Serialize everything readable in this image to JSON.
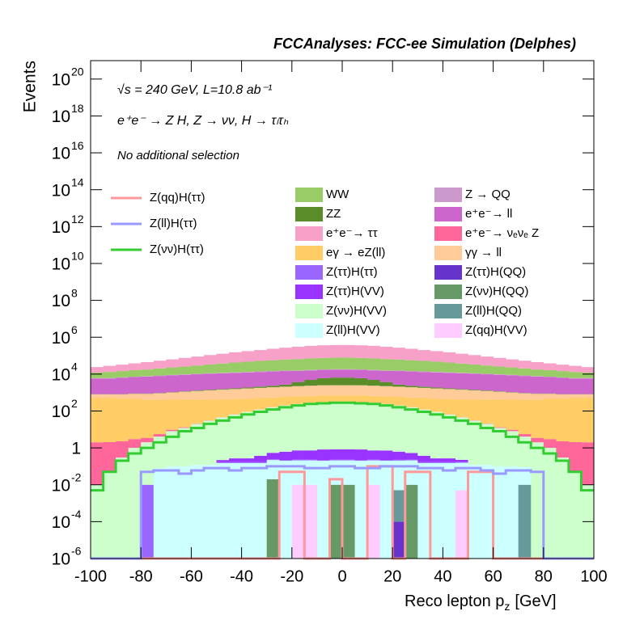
{
  "chart_data": {
    "type": "histogram",
    "title": "FCCAnalyses: FCC-ee Simulation (Delphes)",
    "annotations": [
      "√s = 240 GeV, L=10.8 ab⁻¹",
      "e⁺e⁻ → Z H, Z → νν, H → τₗτₕ",
      "No additional selection"
    ],
    "y_label": "Events",
    "x_label": {
      "main": "Reco lepton p",
      "sub": "z",
      "unit": "[GeV]"
    },
    "log_y": true,
    "stacked": true,
    "bins": [
      -100,
      -95,
      -90,
      -85,
      -80,
      -75,
      -70,
      -65,
      -60,
      -55,
      -50,
      -45,
      -40,
      -35,
      -30,
      -25,
      -20,
      -15,
      -10,
      -5,
      0,
      5,
      10,
      15,
      20,
      25,
      30,
      35,
      40,
      45,
      50,
      55,
      60,
      65,
      70,
      75,
      80,
      85,
      90,
      95,
      100
    ],
    "xlim": [
      -100,
      100
    ],
    "xticks": [
      -100,
      -80,
      -60,
      -40,
      -20,
      0,
      20,
      40,
      60,
      80,
      100
    ],
    "ylim": [
      1e-06,
      1e+21
    ],
    "yticks": [
      {
        "value": 1e-06,
        "label": "10",
        "exponent": "-6"
      },
      {
        "value": 0.0001,
        "label": "10",
        "exponent": "-4"
      },
      {
        "value": 0.01,
        "label": "10",
        "exponent": "-2"
      },
      1,
      {
        "value": 100.0,
        "label": "10",
        "exponent": "2"
      },
      {
        "value": 10000.0,
        "label": "10",
        "exponent": "4"
      },
      {
        "value": 1000000.0,
        "label": "10",
        "exponent": "6"
      },
      {
        "value": 100000000.0,
        "label": "10",
        "exponent": "8"
      },
      {
        "value": 10000000000.0,
        "label": "10",
        "exponent": "10"
      },
      {
        "value": 1000000000000.0,
        "label": "10",
        "exponent": "12"
      },
      {
        "value": 100000000000000.0,
        "label": "10",
        "exponent": "14"
      },
      {
        "value": 1e+16,
        "label": "10",
        "exponent": "16"
      },
      {
        "value": 1e+18,
        "label": "10",
        "exponent": "18"
      },
      {
        "value": 1e+20,
        "label": "10",
        "exponent": "20"
      }
    ],
    "series": [
      {
        "name": "Z(ττ)H(QQ)",
        "color": "#6633cc",
        "values": [
          0,
          0,
          0,
          0,
          0,
          0,
          0,
          0,
          0,
          0,
          0,
          0,
          0,
          0,
          0,
          0,
          0,
          0,
          0,
          0,
          0,
          0,
          0,
          0,
          0.0001,
          0,
          0,
          0,
          0,
          0,
          0,
          0,
          0,
          0,
          0,
          0,
          0,
          0,
          0,
          0
        ]
      },
      {
        "name": "Z(ll)H(QQ)",
        "color": "#669999",
        "values": [
          0,
          0,
          0,
          0,
          0,
          0,
          0,
          0,
          0,
          0,
          0,
          0,
          0,
          0,
          0,
          0,
          0,
          0,
          0,
          0,
          0,
          0,
          0,
          0,
          0.005,
          0,
          0,
          0,
          0,
          0,
          0,
          0,
          0,
          0,
          0.01,
          0,
          0,
          0,
          0,
          0
        ]
      },
      {
        "name": "Z(νν)H(QQ)",
        "color": "#669966",
        "values": [
          0,
          0,
          0,
          0,
          0,
          0,
          0,
          0,
          0,
          0,
          0,
          0,
          0,
          0,
          0.02,
          0,
          0,
          0,
          0,
          0.01,
          0.01,
          0,
          0,
          0,
          0,
          0.01,
          0,
          0,
          0,
          0,
          0,
          0,
          0,
          0,
          0,
          0,
          0,
          0,
          0,
          0
        ]
      },
      {
        "name": "Z(qq)H(VV)",
        "color": "#ffccff",
        "values": [
          0,
          0,
          0,
          0,
          0,
          0,
          0,
          0,
          0,
          0,
          0,
          0,
          0,
          0,
          0,
          0,
          0.01,
          0.01,
          0,
          0,
          0,
          0,
          0.01,
          0,
          0,
          0,
          0,
          0,
          0,
          0.005,
          0,
          0,
          0,
          0,
          0,
          0,
          0,
          0,
          0,
          0
        ]
      },
      {
        "name": "Z(ll)H(VV)",
        "color": "#ccffff",
        "values": [
          0,
          0,
          0,
          0,
          0,
          0.08,
          0.1,
          0.1,
          0.12,
          0.12,
          0.15,
          0.15,
          0.15,
          0.15,
          0.2,
          0.2,
          0.2,
          0.2,
          0.2,
          0.2,
          0.2,
          0.2,
          0.2,
          0.2,
          0.2,
          0.2,
          0.15,
          0.15,
          0.15,
          0.15,
          0.12,
          0.12,
          0.1,
          0.1,
          0.08,
          0,
          0,
          0,
          0,
          0
        ]
      },
      {
        "name": "Z(ττ)H(ττ)",
        "color": "#9966ff",
        "values": [
          0,
          0,
          0,
          0,
          0.01,
          0,
          0,
          0,
          0,
          0,
          0.02,
          0.02,
          0.02,
          0.02,
          0.02,
          0.02,
          0.02,
          0.02,
          0.02,
          0.02,
          0.02,
          0.02,
          0.02,
          0.02,
          0.02,
          0.02,
          0.02,
          0.02,
          0.02,
          0.02,
          0,
          0,
          0,
          0,
          0,
          0,
          0,
          0,
          0,
          0
        ]
      },
      {
        "name": "Z(ττ)H(VV)",
        "color": "#9933ff",
        "values": [
          0,
          0,
          0,
          0,
          0,
          0,
          0,
          0,
          0,
          0,
          0.05,
          0.1,
          0.1,
          0.2,
          0.3,
          0.4,
          0.5,
          0.5,
          0.6,
          0.6,
          0.6,
          0.6,
          0.5,
          0.5,
          0.4,
          0.3,
          0.2,
          0.1,
          0.1,
          0.05,
          0,
          0,
          0,
          0,
          0,
          0,
          0,
          0,
          0,
          0
        ]
      },
      {
        "name": "Z(νν)H(VV)",
        "color": "#ccffcc",
        "values": [
          0.01,
          0.05,
          0.3,
          1,
          2,
          4,
          8,
          12,
          20,
          30,
          45,
          65,
          90,
          120,
          160,
          200,
          240,
          280,
          300,
          320,
          320,
          300,
          280,
          240,
          200,
          160,
          120,
          90,
          65,
          45,
          30,
          20,
          12,
          8,
          4,
          2,
          1,
          0.3,
          0.05,
          0.01
        ]
      },
      {
        "name": "e⁺e⁻→ νₑνₑ Z",
        "color": "#ff6699",
        "values": [
          2,
          2,
          2,
          2,
          1.5,
          1.5,
          1.5,
          1,
          1,
          1,
          1,
          1,
          1,
          1,
          1,
          1,
          1,
          1,
          1,
          1,
          1,
          1,
          1,
          1,
          1,
          1,
          1,
          1,
          1,
          1,
          1,
          1,
          1,
          1.5,
          1.5,
          1.5,
          2,
          2,
          2,
          2
        ]
      },
      {
        "name": "eγ → eZ(ll)",
        "color": "#ffcc66",
        "values": [
          500,
          500,
          450,
          450,
          400,
          400,
          400,
          400,
          400,
          380,
          380,
          380,
          380,
          380,
          380,
          380,
          380,
          380,
          380,
          380,
          380,
          380,
          380,
          380,
          380,
          380,
          380,
          380,
          380,
          380,
          380,
          400,
          400,
          400,
          400,
          400,
          450,
          450,
          500,
          500
        ]
      },
      {
        "name": "γγ → ll",
        "color": "#ffcc99",
        "values": [
          300,
          300,
          350,
          400,
          450,
          500,
          600,
          700,
          800,
          900,
          1000,
          1100,
          1200,
          1300,
          1400,
          1500,
          1600,
          1700,
          1800,
          1800,
          1800,
          1800,
          1700,
          1600,
          1500,
          1400,
          1300,
          1200,
          1100,
          1000,
          900,
          800,
          700,
          600,
          500,
          450,
          400,
          350,
          300,
          300
        ]
      },
      {
        "name": "ZZ",
        "color": "#5b8c2a",
        "values": [
          20,
          20,
          20,
          30,
          30,
          40,
          50,
          60,
          80,
          100,
          120,
          150,
          200,
          300,
          400,
          600,
          1500,
          2500,
          3500,
          4000,
          4000,
          3500,
          2500,
          1500,
          600,
          400,
          300,
          200,
          150,
          120,
          100,
          80,
          60,
          50,
          40,
          30,
          30,
          20,
          20,
          20
        ]
      },
      {
        "name": "e⁺e⁻→ ll",
        "color": "#cc66cc",
        "values": [
          5000,
          5000,
          5500,
          6000,
          6500,
          7000,
          7500,
          8000,
          8500,
          9000,
          9500,
          10000,
          10500,
          11000,
          11500,
          12000,
          11000,
          11000,
          11000,
          11000,
          11000,
          11000,
          11000,
          11000,
          12000,
          11500,
          11000,
          10500,
          10000,
          9500,
          9000,
          8500,
          8000,
          7500,
          7000,
          6500,
          6000,
          5500,
          5000,
          5000
        ]
      },
      {
        "name": "Z → QQ",
        "color": "#cc99cc",
        "values": [
          300,
          300,
          300,
          400,
          400,
          500,
          500,
          600,
          600,
          700,
          700,
          800,
          800,
          900,
          900,
          1000,
          1000,
          1000,
          1000,
          1000,
          1000,
          1000,
          1000,
          1000,
          1000,
          900,
          900,
          800,
          800,
          700,
          700,
          600,
          600,
          500,
          500,
          400,
          400,
          300,
          300,
          300
        ]
      },
      {
        "name": "WW",
        "color": "#99cc66",
        "values": [
          6000,
          7000,
          8000,
          9000,
          10000,
          12000,
          14000,
          16000,
          19000,
          22000,
          26000,
          30000,
          34000,
          38000,
          42000,
          46000,
          50000,
          54000,
          57000,
          60000,
          60000,
          57000,
          54000,
          50000,
          46000,
          42000,
          38000,
          34000,
          30000,
          26000,
          22000,
          19000,
          16000,
          14000,
          12000,
          10000,
          9000,
          8000,
          7000,
          6000
        ]
      },
      {
        "name": "e⁺e⁻→ ττ",
        "color": "#f7a1c9",
        "values": [
          12000,
          15000,
          18000,
          22000,
          27000,
          33000,
          40000,
          50000,
          60000,
          75000,
          90000,
          110000,
          130000,
          150000,
          180000,
          210000,
          240000,
          270000,
          290000,
          300000,
          300000,
          290000,
          270000,
          240000,
          210000,
          180000,
          150000,
          130000,
          110000,
          90000,
          75000,
          60000,
          50000,
          40000,
          33000,
          27000,
          22000,
          18000,
          15000,
          12000
        ]
      }
    ],
    "overlay_series": [
      {
        "name": "Z(qq)H(ττ)",
        "color": "#ff9999",
        "values": [
          0,
          0,
          0,
          0,
          0,
          0,
          0,
          0,
          0,
          0,
          0,
          0,
          0,
          0,
          0,
          0.05,
          0.05,
          0,
          0,
          0.02,
          0,
          0,
          0.1,
          0.1,
          0,
          0.05,
          0.05,
          0,
          0,
          0,
          0.05,
          0.05,
          0,
          0,
          0,
          0,
          0,
          0,
          0,
          0
        ]
      },
      {
        "name": "Z(ll)H(ττ)",
        "color": "#9999ff",
        "values": [
          0,
          0,
          0,
          0,
          0.05,
          0.06,
          0.06,
          0.04,
          0.06,
          0.08,
          0.08,
          0.06,
          0.08,
          0.08,
          0.1,
          0.1,
          0.1,
          0.08,
          0.08,
          0.1,
          0.1,
          0.08,
          0.08,
          0.1,
          0.1,
          0.1,
          0.08,
          0.08,
          0.06,
          0.08,
          0.08,
          0.06,
          0.04,
          0.06,
          0.06,
          0.05,
          0,
          0,
          0,
          0
        ]
      },
      {
        "name": "Z(νν)H(ττ)",
        "color": "#33cc33",
        "values": [
          0.005,
          0.05,
          0.2,
          0.5,
          1,
          2,
          4,
          8,
          12,
          20,
          30,
          45,
          65,
          90,
          120,
          160,
          200,
          240,
          260,
          280,
          280,
          260,
          240,
          200,
          160,
          120,
          90,
          65,
          45,
          30,
          20,
          12,
          8,
          4,
          2,
          1,
          0.5,
          0.2,
          0.05,
          0.005
        ]
      }
    ]
  }
}
